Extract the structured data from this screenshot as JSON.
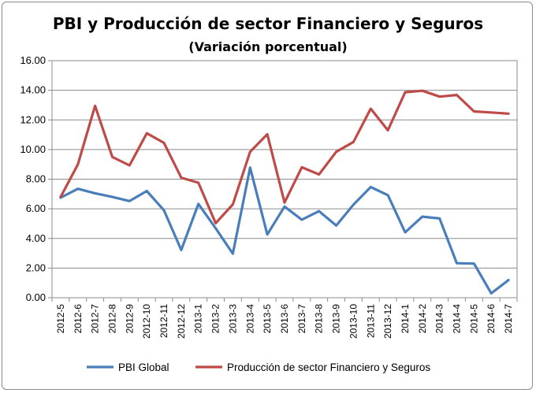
{
  "chart_data": {
    "type": "line",
    "title": "PBI y Producción  de sector Financiero y Seguros",
    "subtitle": "(Variación porcentual)",
    "xlabel": "",
    "ylabel": "",
    "ylim": [
      0,
      16
    ],
    "yticks": [
      "0.00",
      "2.00",
      "4.00",
      "6.00",
      "8.00",
      "10.00",
      "12.00",
      "14.00",
      "16.00"
    ],
    "grid": true,
    "legend_position": "bottom",
    "categories": [
      "2012-5",
      "2012-6",
      "2012-7",
      "2012-8",
      "2012-9",
      "2012-10",
      "2012-11",
      "2012-12",
      "2013-1",
      "2013-2",
      "2013-3",
      "2013-4",
      "2013-5",
      "2013-6",
      "2013-7",
      "2013-8",
      "2013-9",
      "2013-10",
      "2013-11",
      "2013-12",
      "2014-1",
      "2014-2",
      "2014-3",
      "2014-4",
      "2014-5",
      "2014-6",
      "2014-7"
    ],
    "series": [
      {
        "name": "PBI Global",
        "color": "#4a7ebb",
        "values": [
          6.75,
          7.35,
          7.05,
          6.8,
          6.52,
          7.2,
          5.9,
          3.22,
          6.33,
          4.69,
          2.97,
          8.78,
          4.27,
          6.15,
          5.26,
          5.84,
          4.87,
          6.28,
          7.47,
          6.92,
          4.41,
          5.47,
          5.35,
          2.33,
          2.3,
          0.3,
          1.19
        ]
      },
      {
        "name": "Producción de sector Financiero y Seguros",
        "color": "#be4b48",
        "values": [
          6.8,
          9.0,
          12.95,
          9.5,
          8.93,
          11.1,
          10.45,
          8.1,
          7.76,
          5.03,
          6.3,
          9.85,
          11.03,
          6.42,
          8.8,
          8.32,
          9.85,
          10.51,
          12.76,
          11.3,
          13.87,
          13.97,
          13.57,
          13.68,
          12.57,
          12.5,
          12.42
        ]
      }
    ]
  }
}
